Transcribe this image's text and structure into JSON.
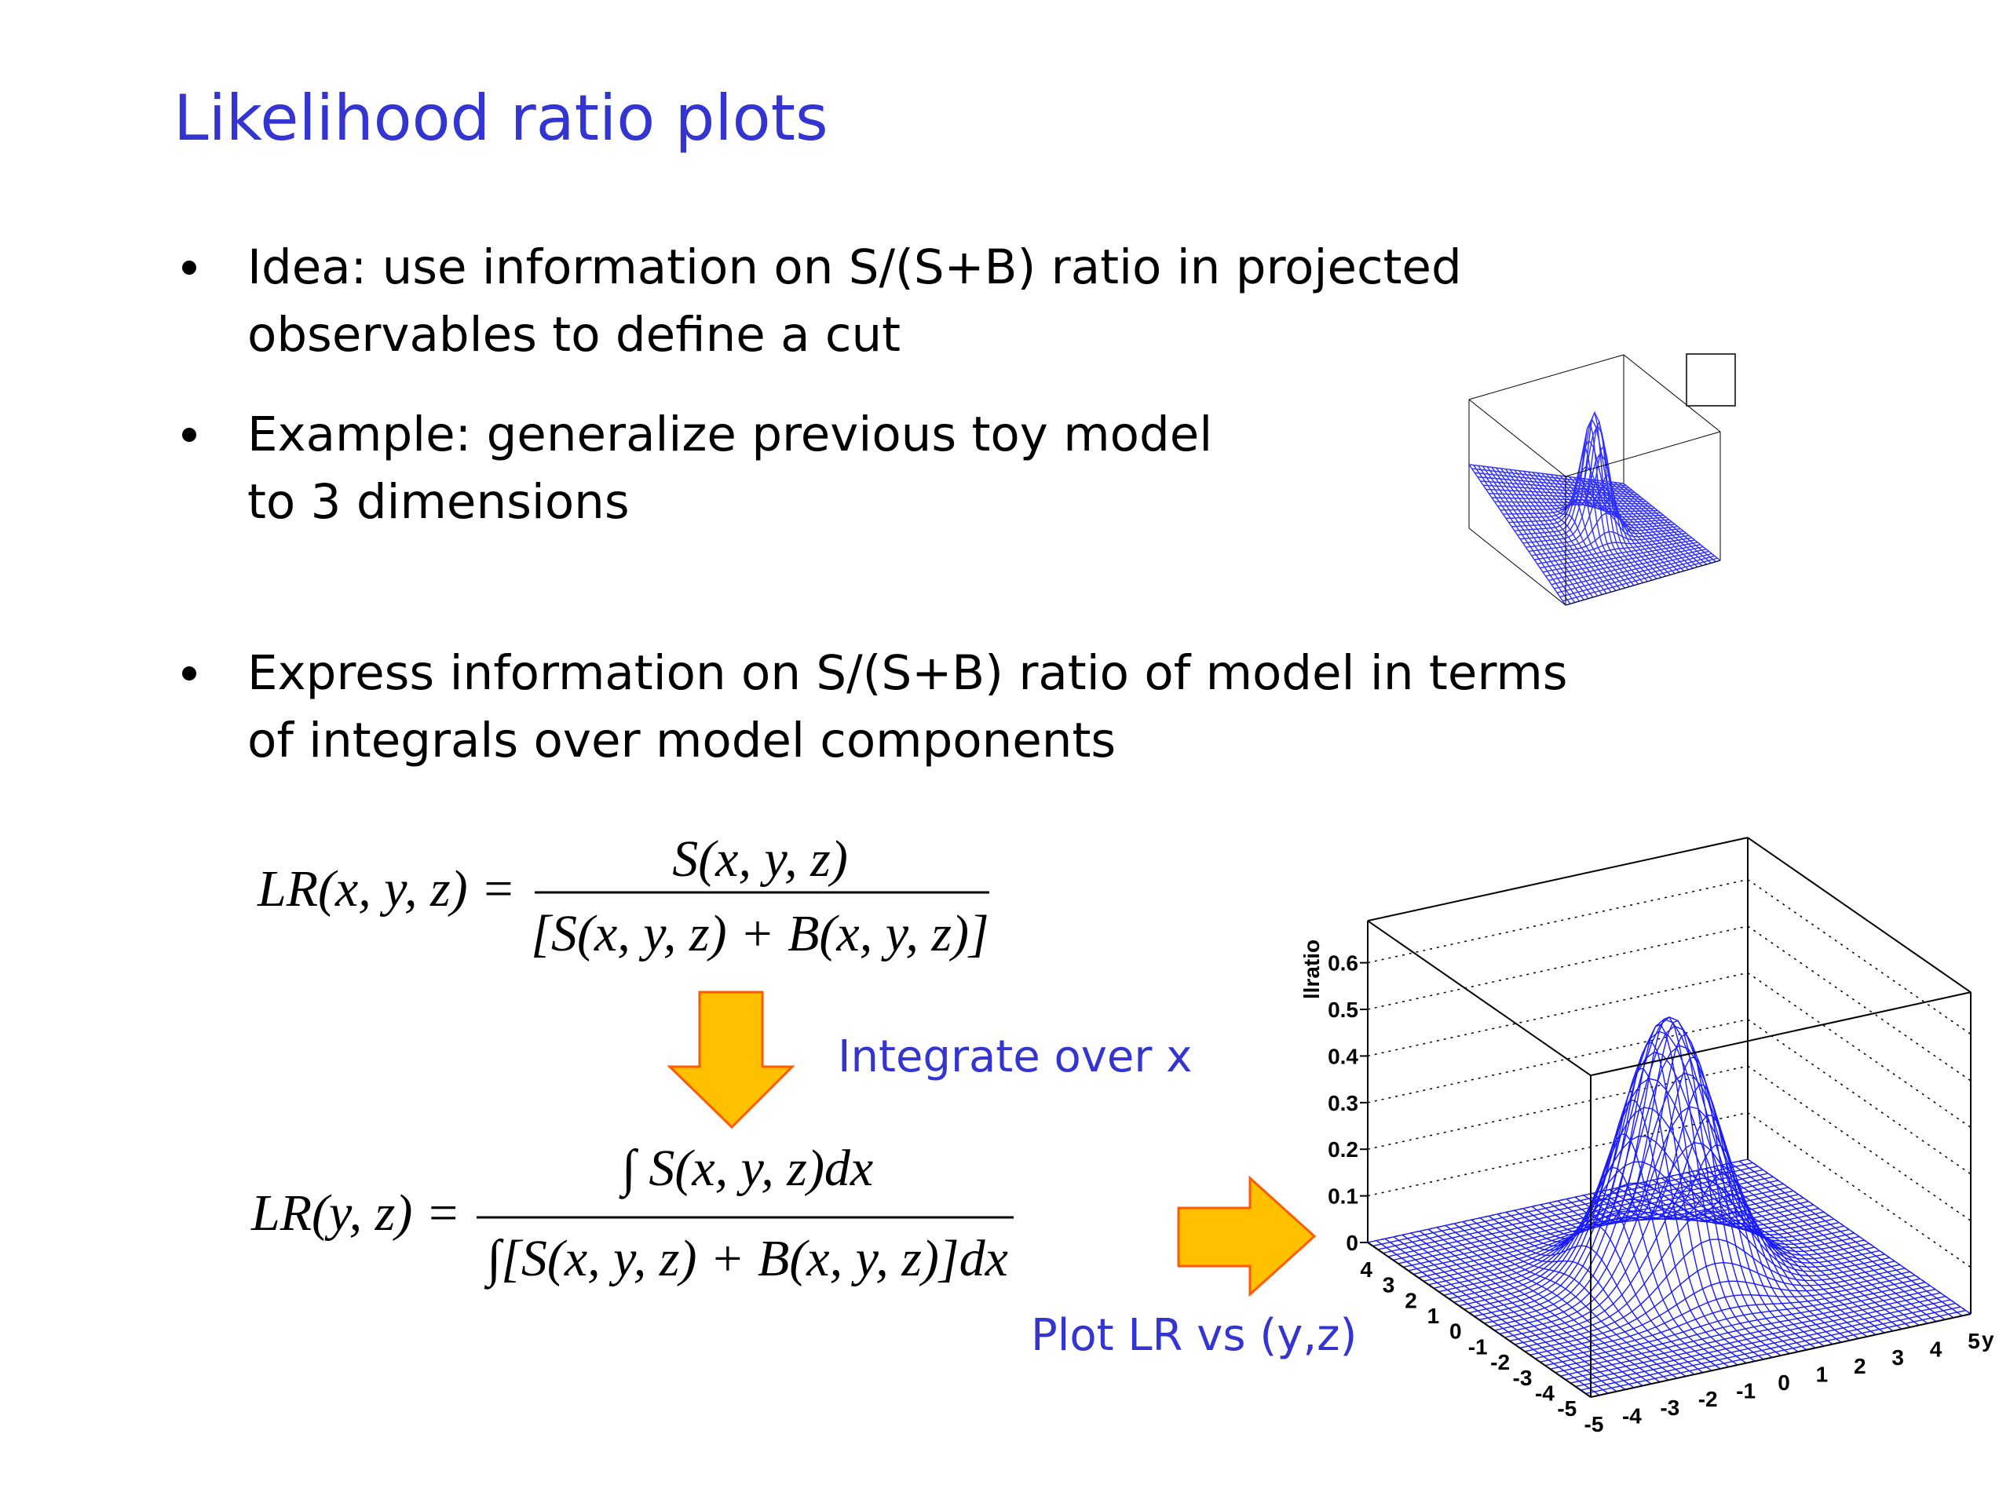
{
  "title": "Likelihood ratio plots",
  "bullets": [
    [
      "Idea: use information on S/(S+B) ratio in projected",
      "observables to define a cut"
    ],
    [
      "Example: generalize previous toy model",
      "to 3 dimensions"
    ],
    [
      "Express information on S/(S+B) ratio of model in terms",
      "of integrals over model components"
    ]
  ],
  "equations": [
    {
      "lhs": "LR(x, y, z) =",
      "numerator": "S(x, y, z)",
      "denominator": "[S(x, y, z) + B(x, y, z)]"
    },
    {
      "lhs": "LR(y, z) =",
      "numerator": "∫ S(x, y, z)dx",
      "denominator": "∫[S(x, y, z) + B(x, y, z)]dx"
    }
  ],
  "annotations": [
    "Integrate over x",
    "Plot LR vs (y,z)"
  ],
  "plot": {
    "zlabel": "llratio",
    "zticks": [
      0,
      0.1,
      0.2,
      0.3,
      0.4,
      0.5,
      0.6
    ],
    "left_ticks": [
      4,
      3,
      2,
      1,
      0,
      -1,
      -2,
      -3,
      -4,
      -5
    ],
    "right_ticks": [
      -5,
      -4,
      -3,
      -2,
      -1,
      0,
      1,
      2,
      3,
      4,
      5
    ],
    "right_label": "y"
  }
}
